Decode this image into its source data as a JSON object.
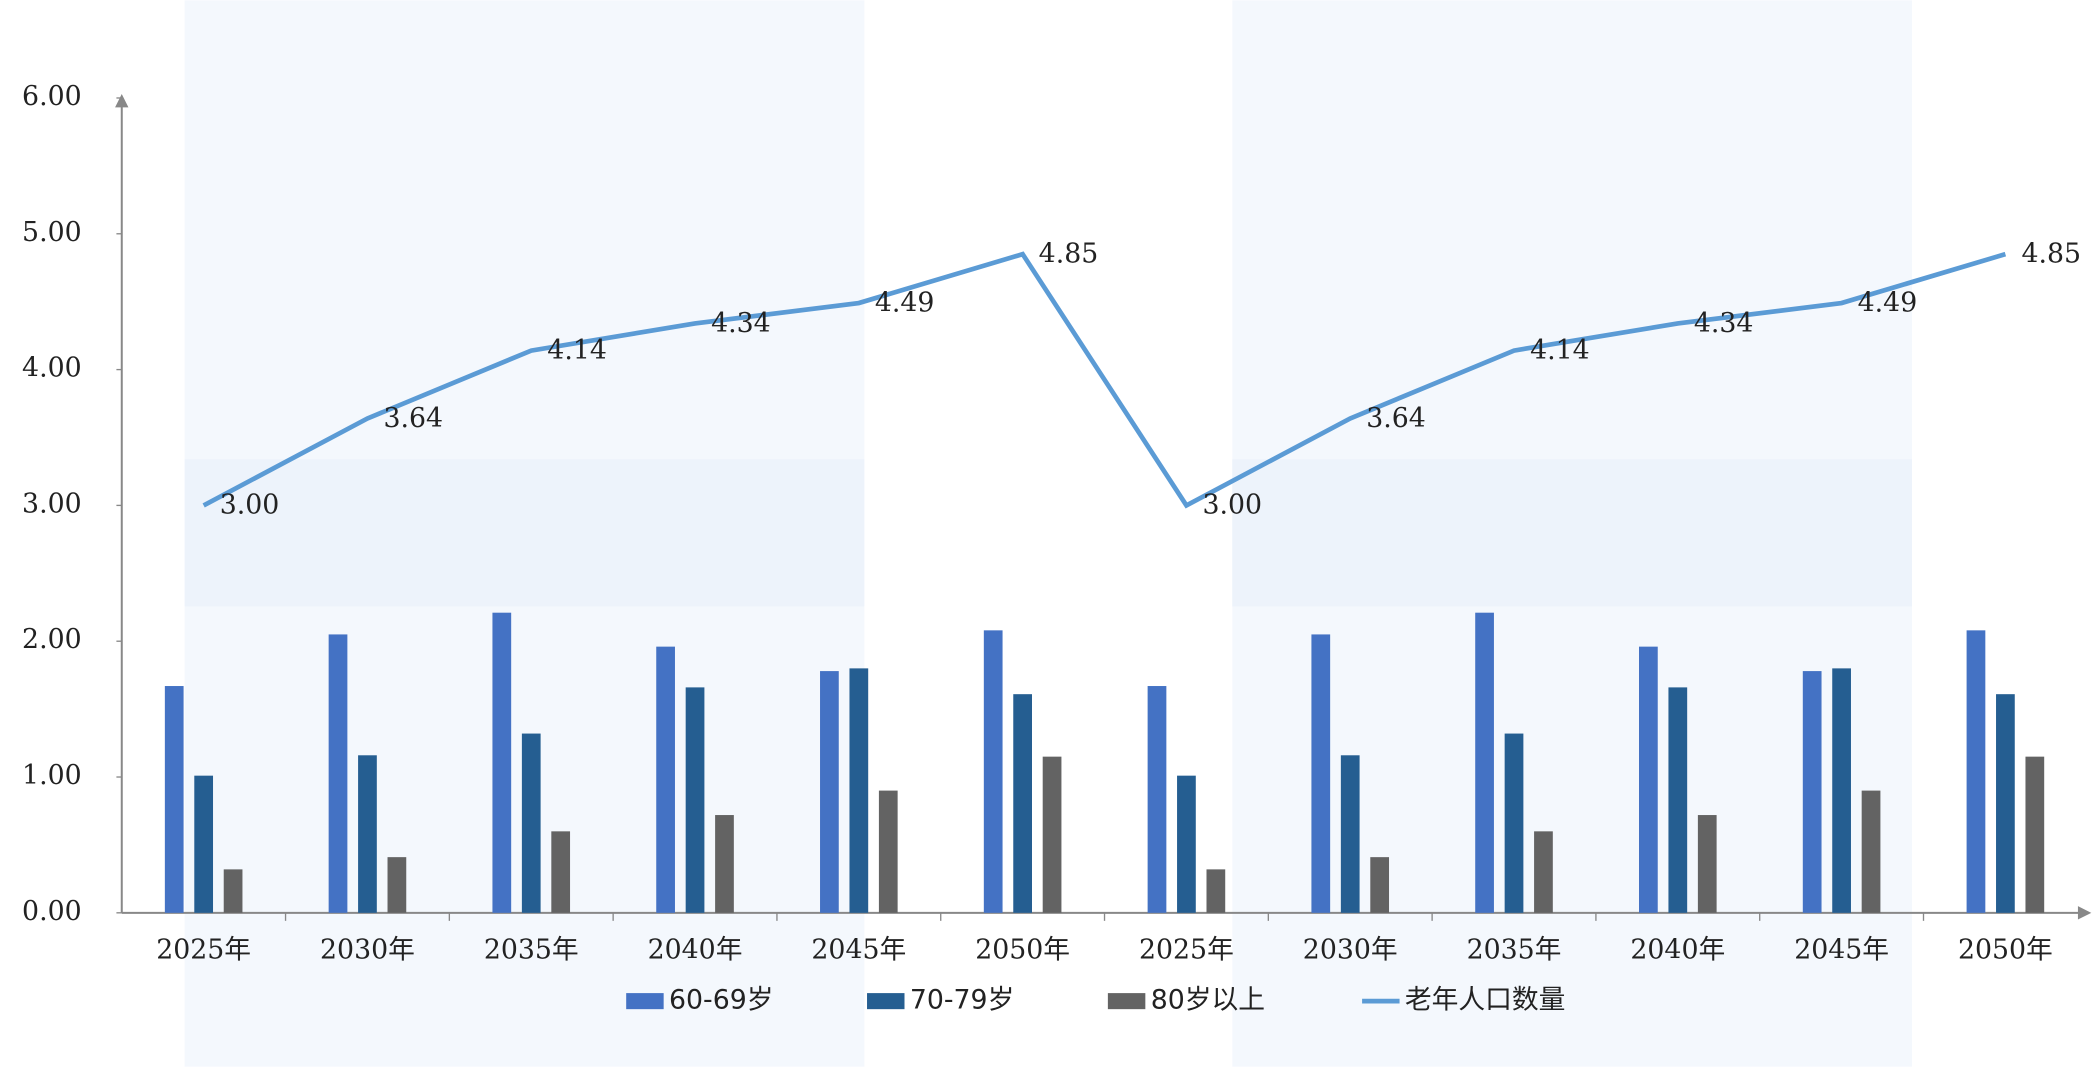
{
  "chart_data": {
    "type": "bar-line",
    "categories": [
      "2025年",
      "2030年",
      "2035年",
      "2040年",
      "2045年",
      "2050年",
      "2025年",
      "2030年",
      "2035年",
      "2040年",
      "2045年",
      "2050年"
    ],
    "series": [
      {
        "name": "60-69岁",
        "type": "bar",
        "color": "#4472c4",
        "values": [
          1.67,
          2.05,
          2.21,
          1.96,
          1.78,
          2.08,
          1.67,
          2.05,
          2.21,
          1.96,
          1.78,
          2.08
        ]
      },
      {
        "name": "70-79岁",
        "type": "bar",
        "color": "#255e91",
        "values": [
          1.01,
          1.16,
          1.32,
          1.66,
          1.8,
          1.61,
          1.01,
          1.16,
          1.32,
          1.66,
          1.8,
          1.61
        ]
      },
      {
        "name": "80岁以上",
        "type": "bar",
        "color": "#636363",
        "values": [
          0.32,
          0.41,
          0.6,
          0.72,
          0.9,
          1.15,
          0.32,
          0.41,
          0.6,
          0.72,
          0.9,
          1.15
        ]
      },
      {
        "name": "老年人口数量",
        "type": "line",
        "color": "#5b9bd5",
        "values": [
          3.0,
          3.64,
          4.14,
          4.34,
          4.49,
          4.85,
          3.0,
          3.64,
          4.14,
          4.34,
          4.49,
          4.85
        ],
        "value_labels": [
          "3.00",
          "3.64",
          "4.14",
          "4.34",
          "4.49",
          "4.85",
          "3.00",
          "3.64",
          "4.14",
          "4.34",
          "4.49",
          "4.85"
        ]
      }
    ],
    "ylim": [
      0,
      6
    ],
    "yticks": [
      {
        "value": 0,
        "label": "0.00"
      },
      {
        "value": 1,
        "label": "1.00"
      },
      {
        "value": 2,
        "label": "2.00"
      },
      {
        "value": 3,
        "label": "3.00"
      },
      {
        "value": 4,
        "label": "4.00"
      },
      {
        "value": 5,
        "label": "5.00"
      },
      {
        "value": 6,
        "label": "6.00"
      }
    ],
    "grid": false,
    "legend": "bottom"
  }
}
